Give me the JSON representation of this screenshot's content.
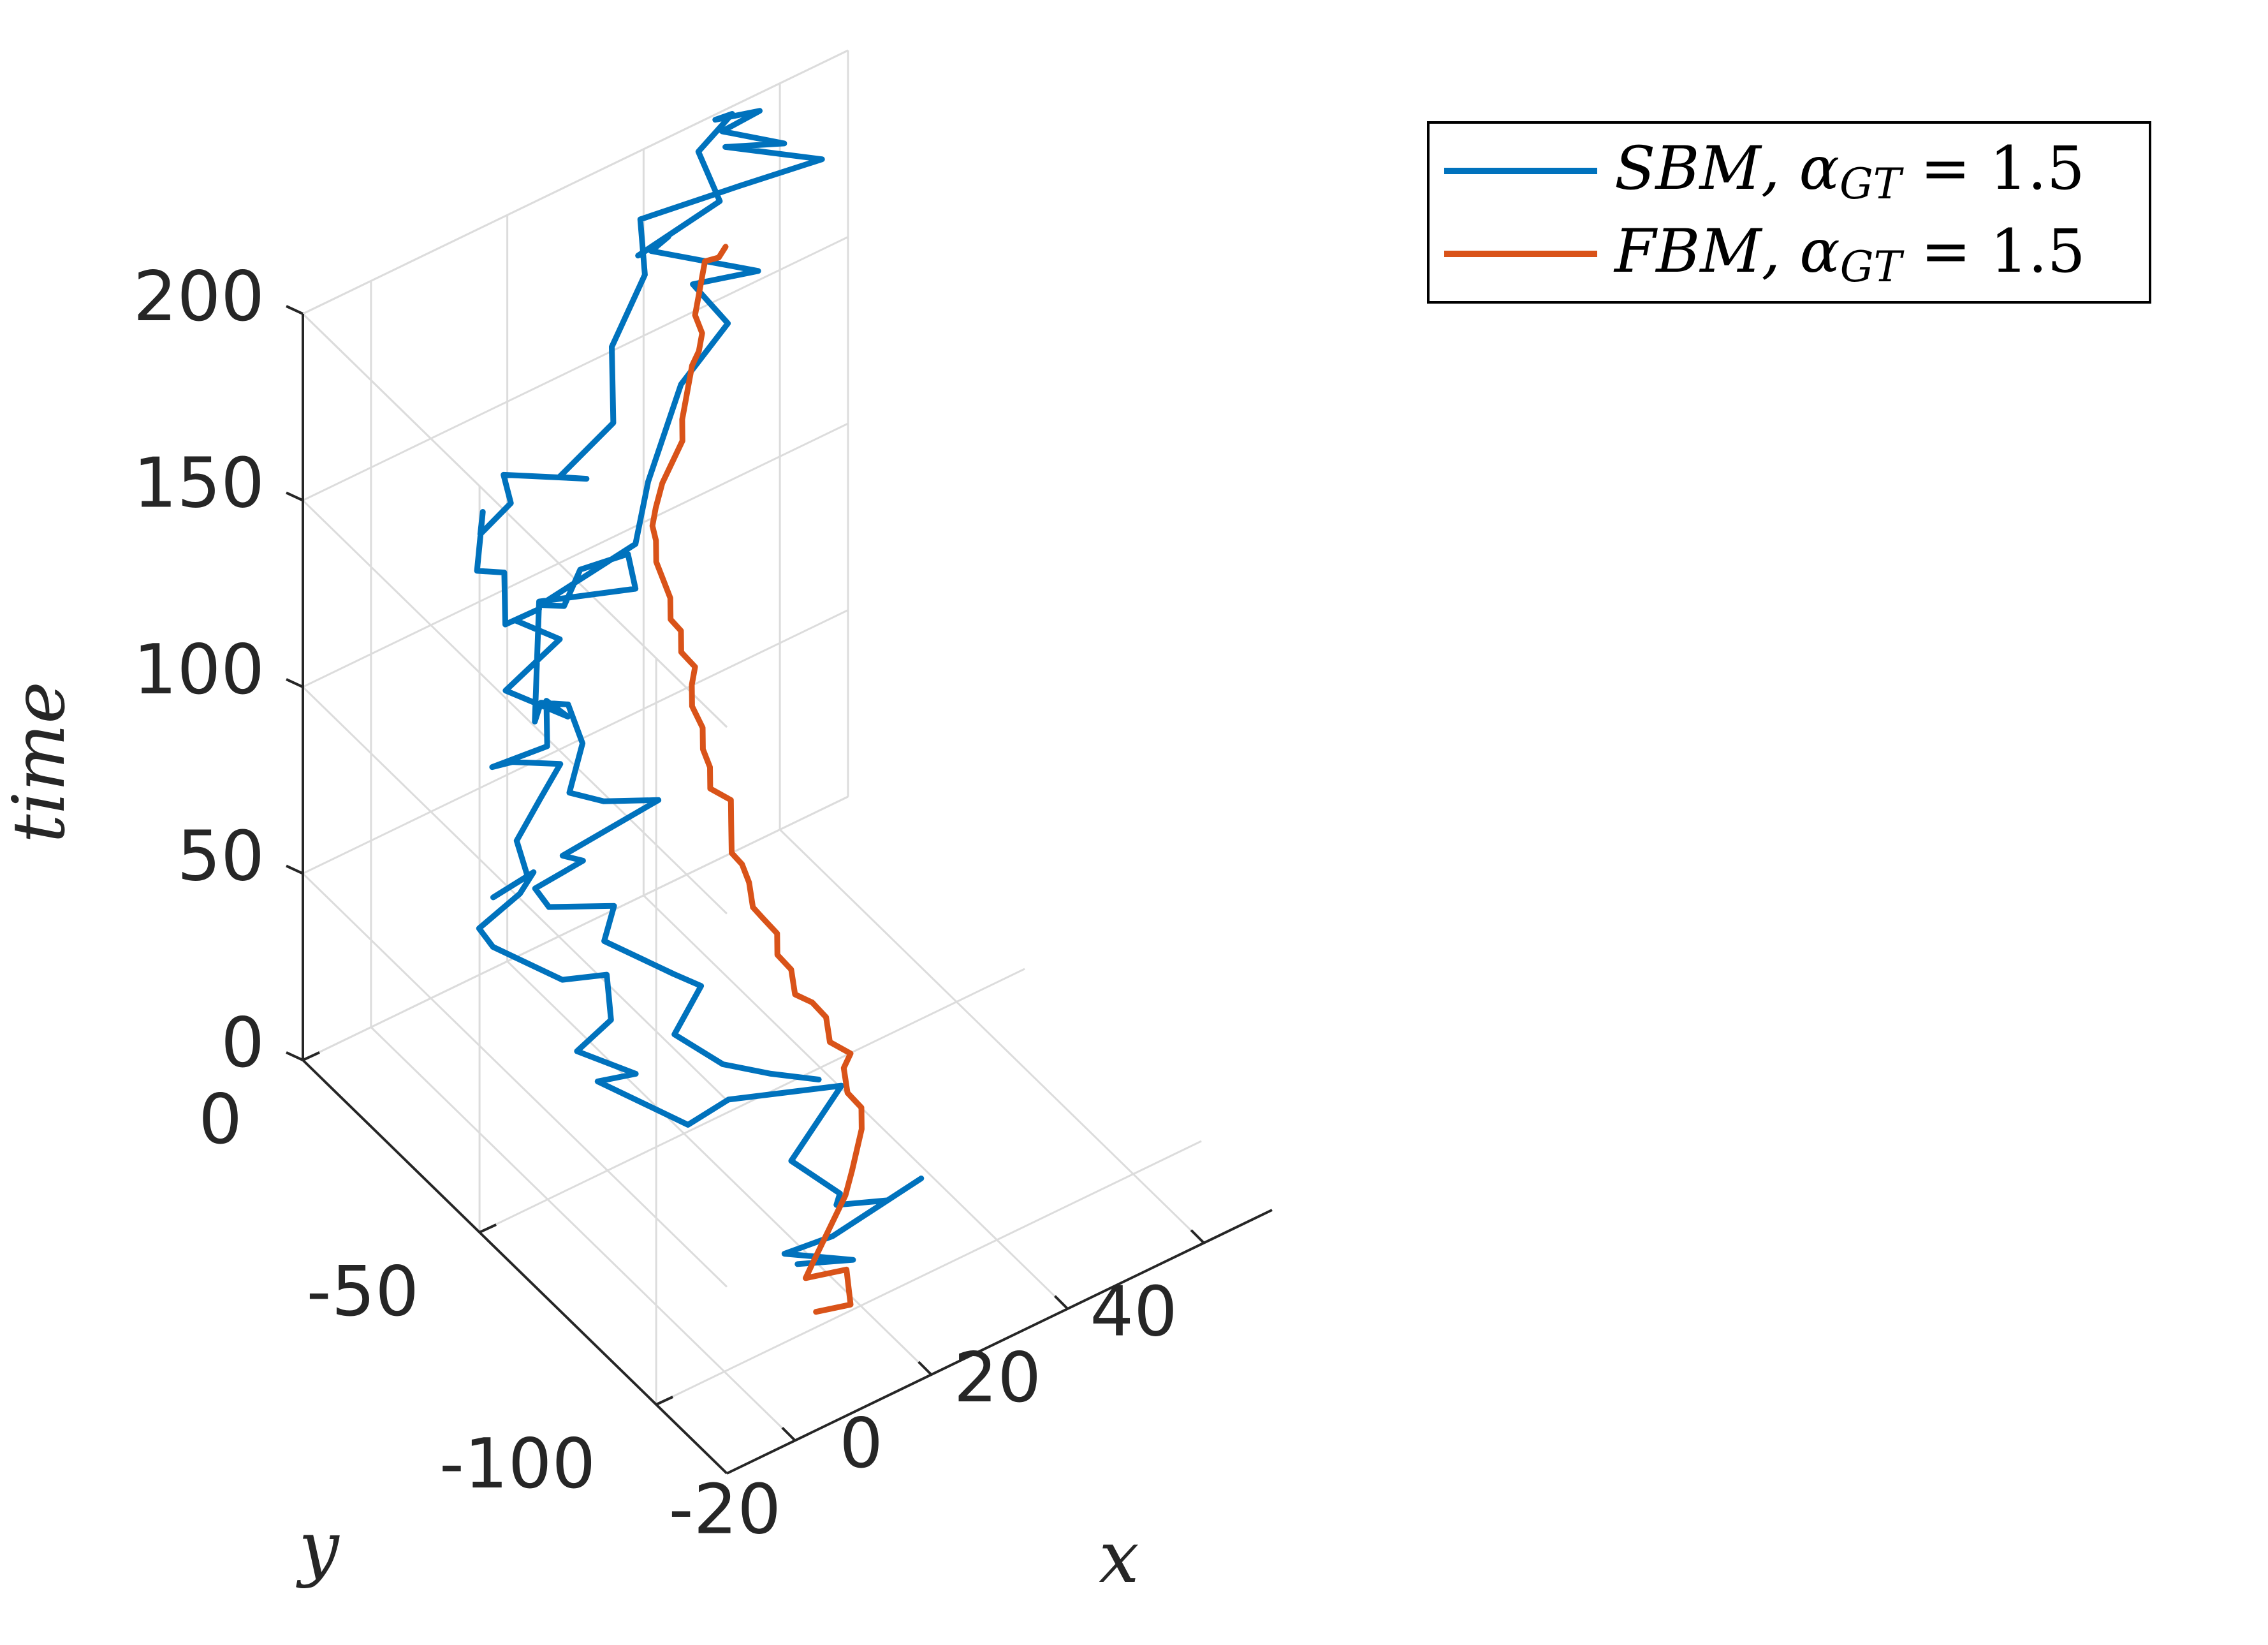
{
  "chart_data": {
    "type": "line",
    "dimensions": 3,
    "xlabel": "x",
    "ylabel": "y",
    "zlabel": "time",
    "xlim": [
      -30,
      50
    ],
    "ylim": [
      -120,
      0
    ],
    "zlim": [
      0,
      200
    ],
    "xticks": [
      "-20",
      "0",
      "20",
      "40"
    ],
    "yticks": [
      "0",
      "-50",
      "-100"
    ],
    "zticks": [
      "0",
      "50",
      "100",
      "150",
      "200"
    ],
    "grid": true,
    "legend_position": "top-right",
    "colors": {
      "sbm": "#0072BD",
      "fbm": "#D95319"
    },
    "series": [
      {
        "name": "SBM, α_GT = 1.5",
        "legend_main": "SBM, α",
        "legend_sub": "GT",
        "legend_tail": " = 1.5",
        "color": "#0072BD",
        "points": [
          [
            -2,
            -86,
            0
          ],
          [
            2,
            -94,
            5
          ],
          [
            -6,
            -90,
            10
          ],
          [
            -1,
            -94,
            14
          ],
          [
            12,
            -94,
            18
          ],
          [
            5,
            -98,
            22
          ],
          [
            -2,
            -97,
            26
          ],
          [
            -2,
            -98,
            30
          ],
          [
            -5,
            -90,
            34
          ],
          [
            6,
            -83,
            38
          ],
          [
            -8,
            -78,
            42
          ],
          [
            -16,
            -82,
            46
          ],
          [
            -22,
            -68,
            50
          ],
          [
            -19,
            -73,
            54
          ],
          [
            -24,
            -66,
            58
          ],
          [
            -19,
            -66,
            62
          ],
          [
            -16,
            -59,
            65
          ],
          [
            -22,
            -58,
            68
          ],
          [
            -27,
            -48,
            72
          ],
          [
            -28,
            -46,
            76
          ],
          [
            -22,
            -46,
            80
          ],
          [
            -20,
            -46,
            84
          ],
          [
            -28,
            -50,
            88
          ],
          [
            -24,
            -52,
            92
          ],
          [
            -23,
            -47,
            96
          ],
          [
            -18,
            -44,
            100
          ],
          [
            -14,
            -42,
            104
          ],
          [
            -20,
            -40,
            108
          ],
          [
            -24,
            -42,
            112
          ],
          [
            -18,
            -46,
            116
          ],
          [
            -15,
            -40,
            120
          ],
          [
            -16,
            -48,
            124
          ],
          [
            -21,
            -40,
            128
          ],
          [
            -12,
            -38,
            132
          ],
          [
            -16,
            -33,
            136
          ],
          [
            -14,
            -36,
            140
          ],
          [
            -20,
            -38,
            143
          ],
          [
            -16,
            -30,
            146
          ],
          [
            -20,
            -30,
            150
          ],
          [
            -15,
            -22,
            154
          ],
          [
            -19,
            -29,
            158
          ],
          [
            -14,
            -28,
            161
          ],
          [
            -13,
            -24,
            164
          ],
          [
            -6,
            -34,
            166
          ],
          [
            -10,
            -34,
            170
          ],
          [
            0,
            -30,
            172
          ],
          [
            3,
            -24,
            174
          ],
          [
            6,
            -18,
            176
          ],
          [
            15,
            -10,
            180
          ],
          [
            19,
            -1,
            183
          ],
          [
            31,
            -6,
            186
          ],
          [
            41,
            -10,
            188
          ],
          [
            32,
            0,
            190
          ],
          [
            37,
            -7,
            193
          ],
          [
            31,
            -1,
            196
          ],
          [
            36,
            -2,
            198
          ],
          [
            30,
            -1,
            200
          ],
          [
            33,
            0,
            198
          ],
          [
            27,
            -2,
            195
          ],
          [
            26,
            -10,
            190
          ],
          [
            14,
            -10,
            186
          ],
          [
            20,
            -7,
            183
          ],
          [
            18,
            -6,
            180
          ],
          [
            28,
            -17,
            176
          ],
          [
            21,
            -12,
            174
          ],
          [
            22,
            -20,
            170
          ],
          [
            12,
            -26,
            168
          ],
          [
            2,
            -36,
            160
          ],
          [
            -4,
            -44,
            156
          ],
          [
            -18,
            -44,
            152
          ],
          [
            -15,
            -45,
            150
          ],
          [
            -9,
            -38,
            148
          ],
          [
            -2,
            -38,
            146
          ],
          [
            -4,
            -44,
            144
          ],
          [
            -14,
            -36,
            142
          ],
          [
            -25,
            -56,
            138
          ],
          [
            -21,
            -50,
            134
          ],
          [
            -17,
            -50,
            130
          ],
          [
            -18,
            -56,
            126
          ],
          [
            -22,
            -60,
            120
          ],
          [
            -18,
            -62,
            116
          ],
          [
            -11,
            -64,
            112
          ],
          [
            -17,
            -62,
            108
          ],
          [
            -23,
            -60,
            104
          ],
          [
            -20,
            -60,
            100
          ],
          [
            -26,
            -58,
            96
          ],
          [
            -25,
            -60,
            92
          ],
          [
            -17,
            -63,
            88
          ],
          [
            -20,
            -66,
            84
          ],
          [
            -15,
            -76,
            80
          ],
          [
            -12,
            -78,
            76
          ],
          [
            -18,
            -82,
            72
          ],
          [
            -14,
            -88,
            66
          ],
          [
            -8,
            -90,
            60
          ],
          [
            -2,
            -92,
            55
          ]
        ]
      },
      {
        "name": "FBM, α_GT = 1.5",
        "legend_main": "FBM, α",
        "legend_sub": "GT",
        "legend_tail": " = 1.5",
        "color": "#D95319",
        "points": [
          [
            -5,
            -97,
            0
          ],
          [
            -2,
            -101,
            3
          ],
          [
            0,
            -96,
            6
          ],
          [
            -6,
            -96,
            9
          ],
          [
            -5,
            -96,
            12
          ],
          [
            4,
            -88,
            15
          ],
          [
            6,
            -86,
            18
          ],
          [
            10,
            -81,
            21
          ],
          [
            11,
            -79,
            24
          ],
          [
            10,
            -77,
            27
          ],
          [
            11,
            -74,
            30
          ],
          [
            12,
            -74,
            33
          ],
          [
            10,
            -72,
            36
          ],
          [
            11,
            -69,
            39
          ],
          [
            10,
            -67,
            42
          ],
          [
            8,
            -66,
            45
          ],
          [
            9,
            -63,
            48
          ],
          [
            8,
            -61,
            51
          ],
          [
            9,
            -59,
            54
          ],
          [
            8,
            -57,
            57
          ],
          [
            7,
            -56,
            60
          ],
          [
            8,
            -53,
            63
          ],
          [
            8,
            -51,
            66
          ],
          [
            7,
            -50,
            69
          ],
          [
            9,
            -46,
            72
          ],
          [
            10,
            -44,
            75
          ],
          [
            8,
            -42,
            78
          ],
          [
            9,
            -40,
            81
          ],
          [
            9,
            -38,
            84
          ],
          [
            10,
            -36,
            87
          ],
          [
            10,
            -33,
            90
          ],
          [
            11,
            -31,
            93
          ],
          [
            12,
            -30,
            96
          ],
          [
            11,
            -28,
            99
          ],
          [
            12,
            -26,
            102
          ],
          [
            11,
            -25,
            105
          ],
          [
            12,
            -23,
            108
          ],
          [
            12,
            -21,
            111
          ],
          [
            12,
            -19,
            114
          ],
          [
            13,
            -17,
            117
          ],
          [
            13,
            -16,
            120
          ],
          [
            14,
            -15,
            123
          ],
          [
            16,
            -13,
            126
          ],
          [
            18,
            -12,
            129
          ],
          [
            20,
            -11,
            132
          ],
          [
            21,
            -9,
            135
          ],
          [
            22,
            -8,
            138
          ],
          [
            23,
            -7,
            141
          ],
          [
            24,
            -6,
            144
          ],
          [
            25,
            -6,
            147
          ],
          [
            26,
            -5,
            150
          ],
          [
            26,
            -3,
            153
          ],
          [
            27,
            -2,
            156
          ],
          [
            28,
            -1,
            159
          ],
          [
            29,
            0,
            162
          ],
          [
            30,
            -2,
            164
          ],
          [
            31,
            -2,
            166
          ]
        ]
      }
    ]
  }
}
